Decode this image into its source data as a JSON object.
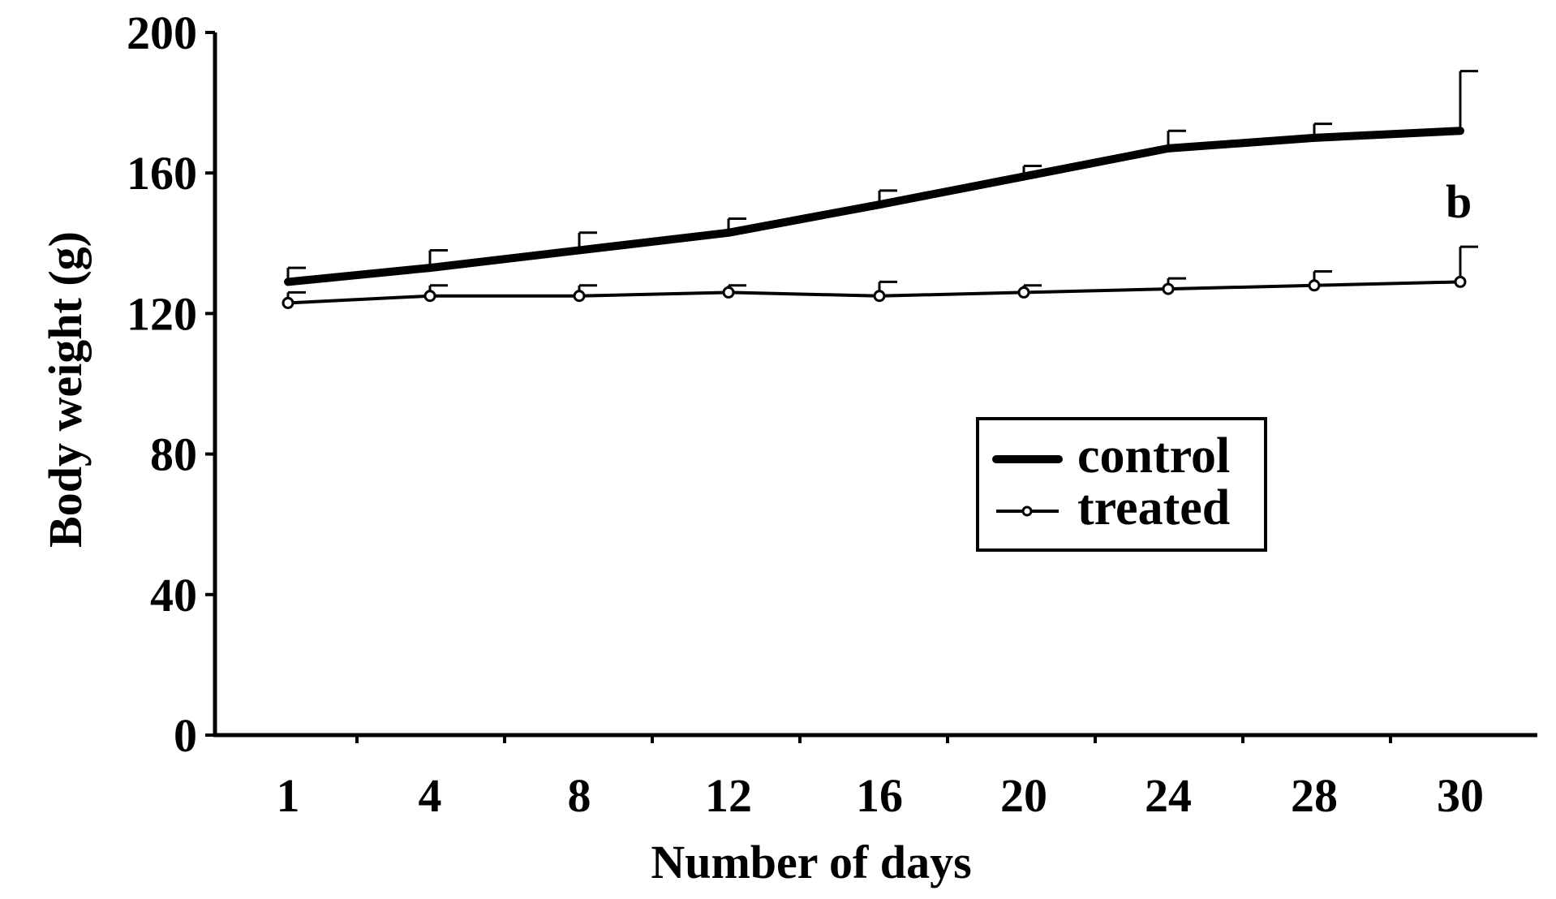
{
  "chart_data": {
    "type": "line",
    "title": "",
    "xlabel": "Number of days",
    "ylabel": "Body weight (g)",
    "categories": [
      "1",
      "4",
      "8",
      "12",
      "16",
      "20",
      "24",
      "28",
      "30"
    ],
    "ylim": [
      0,
      200
    ],
    "yticks": [
      "0",
      "40",
      "80",
      "120",
      "160",
      "200"
    ],
    "grid": false,
    "legend_position": "center-right",
    "series": [
      {
        "name": "control",
        "style": "thick-line",
        "color": "#000000",
        "values": [
          129,
          133,
          138,
          143,
          151,
          159,
          167,
          170,
          172
        ],
        "error": [
          4,
          5,
          5,
          4,
          4,
          3,
          5,
          4,
          17
        ]
      },
      {
        "name": "treated",
        "style": "thin-line-open-circle",
        "color": "#000000",
        "values": [
          123,
          125,
          125,
          126,
          125,
          126,
          127,
          128,
          129
        ],
        "error": [
          3,
          3,
          3,
          2,
          4,
          2,
          3,
          4,
          10
        ]
      }
    ],
    "annotations": [
      {
        "text": "b",
        "x": "30",
        "y": 152
      }
    ]
  }
}
